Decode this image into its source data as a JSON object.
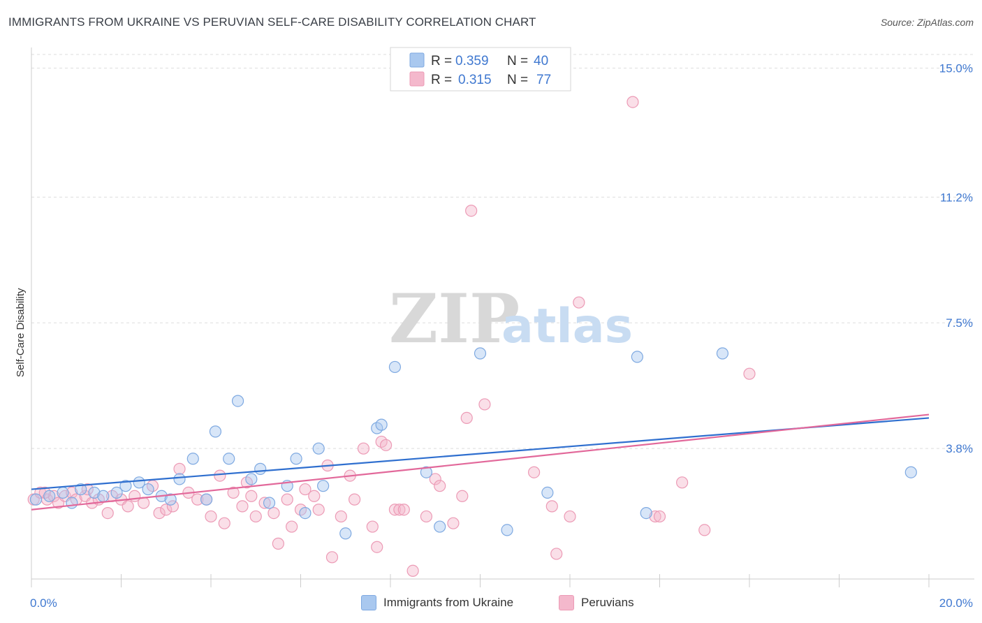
{
  "header": {
    "title": "IMMIGRANTS FROM UKRAINE VS PERUVIAN SELF-CARE DISABILITY CORRELATION CHART",
    "source": "Source: ZipAtlas.com"
  },
  "watermark": {
    "zip": "ZIP",
    "atlas": "atlas"
  },
  "legend_top": {
    "rows": [
      {
        "r_label": "R =",
        "r_value": "0.359",
        "n_label": "N =",
        "n_value": "40"
      },
      {
        "r_label": "R =",
        "r_value": "0.315",
        "n_label": "N =",
        "n_value": "77"
      }
    ]
  },
  "legend_bottom": {
    "items": [
      "Immigrants from Ukraine",
      "Peruvians"
    ]
  },
  "colors": {
    "blue_fill": "#a9c8ef",
    "blue_stroke": "#7ea9e1",
    "blue_line": "#2f6fcf",
    "pink_fill": "#f4b8cc",
    "pink_stroke": "#ec9ab5",
    "pink_line": "#e2689a",
    "tick_label": "#3f78d0",
    "grid": "#dddddd"
  },
  "chart_data": {
    "type": "scatter",
    "title": "IMMIGRANTS FROM UKRAINE VS PERUVIAN SELF-CARE DISABILITY CORRELATION CHART",
    "xlabel": "",
    "ylabel": "Self-Care Disability",
    "xlim": [
      0,
      20
    ],
    "ylim": [
      0,
      15.4
    ],
    "x_tick_labels": [
      "0.0%",
      "20.0%"
    ],
    "y_ticks": [
      3.8,
      7.5,
      11.2,
      15.0
    ],
    "y_tick_labels": [
      "3.8%",
      "7.5%",
      "11.2%",
      "15.0%"
    ],
    "grid": "horizontal dashed",
    "legend_position": "top-center",
    "series": [
      {
        "name": "Immigrants from Ukraine",
        "r": 0.359,
        "n": 40,
        "trend": [
          [
            0,
            2.6
          ],
          [
            20,
            4.7
          ]
        ],
        "points": [
          [
            0.1,
            2.3
          ],
          [
            0.4,
            2.4
          ],
          [
            0.7,
            2.5
          ],
          [
            0.9,
            2.2
          ],
          [
            1.1,
            2.6
          ],
          [
            1.4,
            2.5
          ],
          [
            1.6,
            2.4
          ],
          [
            1.9,
            2.5
          ],
          [
            2.1,
            2.7
          ],
          [
            2.4,
            2.8
          ],
          [
            2.6,
            2.6
          ],
          [
            2.9,
            2.4
          ],
          [
            3.1,
            2.3
          ],
          [
            3.3,
            2.9
          ],
          [
            3.6,
            3.5
          ],
          [
            3.9,
            2.3
          ],
          [
            4.1,
            4.3
          ],
          [
            4.4,
            3.5
          ],
          [
            4.6,
            5.2
          ],
          [
            4.9,
            2.9
          ],
          [
            5.1,
            3.2
          ],
          [
            5.3,
            2.2
          ],
          [
            5.7,
            2.7
          ],
          [
            5.9,
            3.5
          ],
          [
            6.1,
            1.9
          ],
          [
            6.4,
            3.8
          ],
          [
            6.5,
            2.7
          ],
          [
            7.0,
            1.3
          ],
          [
            7.7,
            4.4
          ],
          [
            7.8,
            4.5
          ],
          [
            8.1,
            6.2
          ],
          [
            8.8,
            3.1
          ],
          [
            9.1,
            1.5
          ],
          [
            10.0,
            6.6
          ],
          [
            10.6,
            1.4
          ],
          [
            11.5,
            2.5
          ],
          [
            13.5,
            6.5
          ],
          [
            13.7,
            1.9
          ],
          [
            15.4,
            6.6
          ],
          [
            19.6,
            3.1
          ]
        ]
      },
      {
        "name": "Peruvians",
        "r": 0.315,
        "n": 77,
        "trend": [
          [
            0,
            2.0
          ],
          [
            20,
            4.8
          ]
        ],
        "points": [
          [
            0.05,
            2.3
          ],
          [
            0.2,
            2.5
          ],
          [
            0.35,
            2.3
          ],
          [
            0.5,
            2.4
          ],
          [
            0.6,
            2.2
          ],
          [
            0.75,
            2.4
          ],
          [
            0.9,
            2.5
          ],
          [
            1.0,
            2.3
          ],
          [
            1.2,
            2.4
          ],
          [
            1.35,
            2.2
          ],
          [
            1.5,
            2.3
          ],
          [
            1.7,
            1.9
          ],
          [
            1.8,
            2.4
          ],
          [
            2.0,
            2.3
          ],
          [
            2.15,
            2.1
          ],
          [
            2.3,
            2.4
          ],
          [
            2.5,
            2.2
          ],
          [
            2.7,
            2.7
          ],
          [
            2.85,
            1.9
          ],
          [
            3.0,
            2.0
          ],
          [
            3.15,
            2.1
          ],
          [
            3.3,
            3.2
          ],
          [
            3.5,
            2.5
          ],
          [
            3.7,
            2.3
          ],
          [
            3.9,
            2.3
          ],
          [
            4.0,
            1.8
          ],
          [
            4.2,
            3.0
          ],
          [
            4.3,
            1.6
          ],
          [
            4.5,
            2.5
          ],
          [
            4.7,
            2.1
          ],
          [
            4.8,
            2.8
          ],
          [
            4.9,
            2.4
          ],
          [
            5.0,
            1.8
          ],
          [
            5.2,
            2.2
          ],
          [
            5.4,
            1.9
          ],
          [
            5.5,
            1.0
          ],
          [
            5.7,
            2.3
          ],
          [
            5.8,
            1.5
          ],
          [
            6.0,
            2.0
          ],
          [
            6.1,
            2.6
          ],
          [
            6.3,
            2.4
          ],
          [
            6.4,
            2.0
          ],
          [
            6.6,
            3.3
          ],
          [
            6.7,
            0.6
          ],
          [
            6.9,
            1.8
          ],
          [
            7.1,
            3.0
          ],
          [
            7.2,
            2.3
          ],
          [
            7.4,
            3.8
          ],
          [
            7.6,
            1.5
          ],
          [
            7.7,
            0.9
          ],
          [
            7.8,
            4.0
          ],
          [
            7.9,
            3.9
          ],
          [
            8.1,
            2.0
          ],
          [
            8.2,
            2.0
          ],
          [
            8.3,
            2.0
          ],
          [
            8.5,
            0.2
          ],
          [
            8.8,
            1.8
          ],
          [
            9.0,
            2.9
          ],
          [
            9.1,
            2.7
          ],
          [
            9.4,
            1.6
          ],
          [
            9.6,
            2.4
          ],
          [
            9.7,
            4.7
          ],
          [
            9.8,
            10.8
          ],
          [
            10.1,
            5.1
          ],
          [
            11.2,
            3.1
          ],
          [
            11.6,
            2.1
          ],
          [
            11.7,
            0.7
          ],
          [
            12.0,
            1.8
          ],
          [
            12.2,
            8.1
          ],
          [
            13.4,
            14.0
          ],
          [
            13.9,
            1.8
          ],
          [
            14.0,
            1.8
          ],
          [
            14.5,
            2.8
          ],
          [
            15.0,
            1.4
          ],
          [
            16.0,
            6.0
          ],
          [
            0.3,
            2.5
          ],
          [
            1.25,
            2.6
          ]
        ]
      }
    ]
  }
}
